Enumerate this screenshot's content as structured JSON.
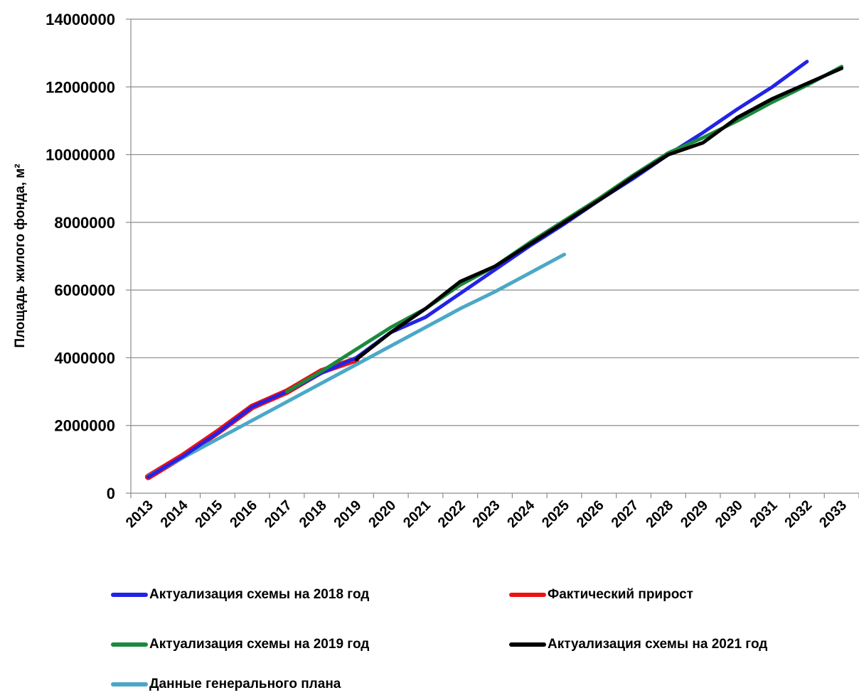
{
  "chart_data": {
    "type": "line",
    "ylabel": "Площадь жилого фонда, м²",
    "xlabel": "",
    "title": "",
    "ylim": [
      0,
      14000000
    ],
    "yticks": [
      "0",
      "2000000",
      "4000000",
      "6000000",
      "8000000",
      "10000000",
      "12000000",
      "14000000"
    ],
    "categories": [
      "2013",
      "2014",
      "2015",
      "2016",
      "2017",
      "2018",
      "2019",
      "2020",
      "2021",
      "2022",
      "2023",
      "2024",
      "2025",
      "2026",
      "2027",
      "2028",
      "2029",
      "2030",
      "2031",
      "2032",
      "2033"
    ],
    "grid": "horizontal",
    "legend_position": "bottom",
    "series": [
      {
        "name": "Актуализация схемы на 2018 год",
        "color": "#2323e6",
        "x": [
          "2013",
          "2014",
          "2015",
          "2016",
          "2017",
          "2018",
          "2019",
          "2020",
          "2021",
          "2022",
          "2023",
          "2024",
          "2025",
          "2026",
          "2027",
          "2028",
          "2029",
          "2030",
          "2031",
          "2032"
        ],
        "values": [
          480000,
          1080000,
          1780000,
          2550000,
          3000000,
          3550000,
          4000000,
          4750000,
          5200000,
          5900000,
          6600000,
          7300000,
          7950000,
          8650000,
          9300000,
          10000000,
          10650000,
          11350000,
          12000000,
          12750000
        ]
      },
      {
        "name": "Фактический прирост",
        "color": "#ee1111",
        "x": [
          "2013",
          "2014",
          "2015",
          "2016",
          "2017",
          "2018",
          "2019"
        ],
        "values": [
          480000,
          1100000,
          1800000,
          2550000,
          3000000,
          3600000,
          3950000
        ]
      },
      {
        "name": "Актуализация схемы на 2019 год",
        "color": "#1a8a3c",
        "x": [
          "2017",
          "2018",
          "2019",
          "2020",
          "2021",
          "2022",
          "2023",
          "2024",
          "2025",
          "2026",
          "2027",
          "2028",
          "2029",
          "2030",
          "2031",
          "2032",
          "2033"
        ],
        "values": [
          3000000,
          3600000,
          4250000,
          4900000,
          5450000,
          6150000,
          6700000,
          7400000,
          8050000,
          8700000,
          9400000,
          10050000,
          10500000,
          11000000,
          11550000,
          12050000,
          12600000
        ]
      },
      {
        "name": "Актуализация схемы на 2021 год",
        "color": "#000000",
        "x": [
          "2019",
          "2020",
          "2021",
          "2022",
          "2023",
          "2024",
          "2025",
          "2026",
          "2027",
          "2028",
          "2029",
          "2030",
          "2031",
          "2032",
          "2033"
        ],
        "values": [
          3950000,
          4750000,
          5450000,
          6250000,
          6700000,
          7350000,
          8000000,
          8650000,
          9350000,
          10000000,
          10350000,
          11100000,
          11650000,
          12100000,
          12550000
        ]
      },
      {
        "name": "Данные генерального плана",
        "color": "#4ba8c6",
        "x": [
          "2013",
          "2014",
          "2015",
          "2016",
          "2017",
          "2018",
          "2019",
          "2020",
          "2021",
          "2022",
          "2023",
          "2024",
          "2025"
        ],
        "values": [
          500000,
          1050000,
          1600000,
          2150000,
          2700000,
          3250000,
          3800000,
          4350000,
          4900000,
          5450000,
          5950000,
          6500000,
          7050000
        ]
      }
    ]
  }
}
